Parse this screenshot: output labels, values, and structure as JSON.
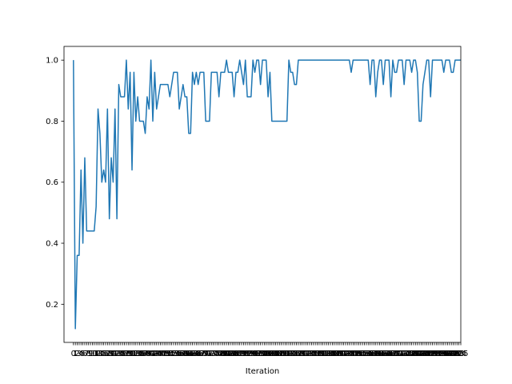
{
  "chart_data": {
    "type": "line",
    "title": "",
    "xlabel": "Iteration",
    "ylabel": "",
    "xlim": [
      -5,
      205
    ],
    "ylim": [
      0.075,
      1.045
    ],
    "yticks": [
      0.2,
      0.4,
      0.6,
      0.8,
      1.0
    ],
    "ytick_labels": [
      "0.2",
      "0.4",
      "0.6",
      "0.8",
      "1.0"
    ],
    "grid": false,
    "legend": "none",
    "line_color": "#1f77b4",
    "series": [
      {
        "values": [
          1.0,
          0.12,
          0.36,
          0.36,
          0.64,
          0.4,
          0.68,
          0.44,
          0.44,
          0.44,
          0.44,
          0.44,
          0.52,
          0.84,
          0.76,
          0.6,
          0.64,
          0.6,
          0.84,
          0.48,
          0.68,
          0.6,
          0.84,
          0.48,
          0.92,
          0.88,
          0.88,
          0.88,
          1.0,
          0.84,
          0.96,
          0.64,
          0.96,
          0.8,
          0.88,
          0.8,
          0.8,
          0.8,
          0.76,
          0.88,
          0.84,
          1.0,
          0.8,
          0.96,
          0.84,
          0.88,
          0.92,
          0.92,
          0.92,
          0.92,
          0.92,
          0.88,
          0.92,
          0.96,
          0.96,
          0.96,
          0.84,
          0.88,
          0.92,
          0.88,
          0.88,
          0.76,
          0.76,
          0.96,
          0.92,
          0.96,
          0.92,
          0.96,
          0.96,
          0.96,
          0.8,
          0.8,
          0.8,
          0.96,
          0.96,
          0.96,
          0.96,
          0.88,
          0.96,
          0.96,
          0.96,
          1.0,
          0.96,
          0.96,
          0.96,
          0.88,
          0.96,
          0.96,
          1.0,
          0.96,
          0.92,
          1.0,
          0.88,
          0.88,
          0.88,
          1.0,
          0.96,
          1.0,
          1.0,
          0.92,
          1.0,
          1.0,
          1.0,
          0.88,
          0.96,
          0.8,
          0.8,
          0.8,
          0.8,
          0.8,
          0.8,
          0.8,
          0.8,
          0.8,
          1.0,
          0.96,
          0.96,
          0.92,
          0.92,
          1.0,
          1.0,
          1.0,
          1.0,
          1.0,
          1.0,
          1.0,
          1.0,
          1.0,
          1.0,
          1.0,
          1.0,
          1.0,
          1.0,
          1.0,
          1.0,
          1.0,
          1.0,
          1.0,
          1.0,
          1.0,
          1.0,
          1.0,
          1.0,
          1.0,
          1.0,
          1.0,
          1.0,
          0.96,
          1.0,
          1.0,
          1.0,
          1.0,
          1.0,
          1.0,
          1.0,
          1.0,
          1.0,
          0.92,
          1.0,
          1.0,
          0.88,
          0.96,
          1.0,
          1.0,
          0.92,
          1.0,
          1.0,
          1.0,
          0.88,
          1.0,
          0.96,
          0.96,
          1.0,
          1.0,
          1.0,
          0.92,
          1.0,
          1.0,
          1.0,
          0.96,
          1.0,
          1.0,
          0.96,
          0.8,
          0.8,
          0.92,
          0.96,
          1.0,
          1.0,
          0.88,
          1.0,
          1.0,
          1.0,
          1.0,
          1.0,
          1.0,
          0.96,
          1.0,
          1.0,
          1.0,
          0.96,
          0.96,
          1.0,
          1.0,
          1.0,
          1.0
        ]
      }
    ]
  }
}
